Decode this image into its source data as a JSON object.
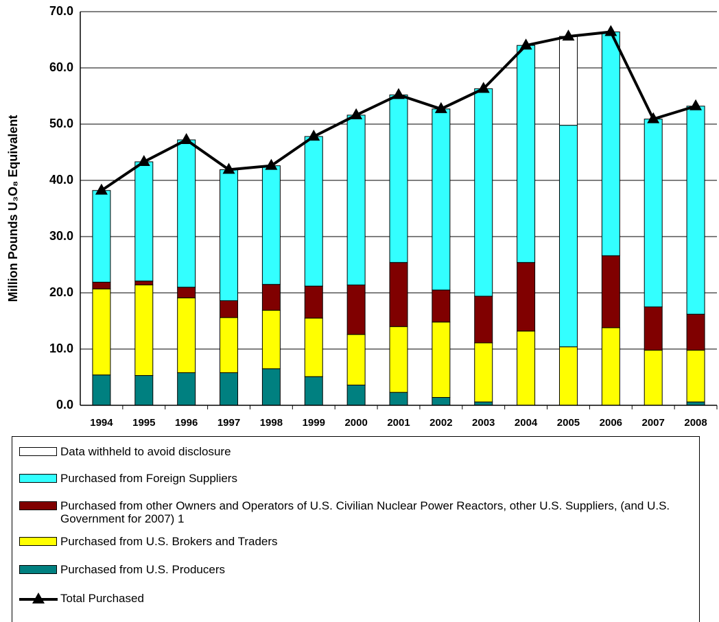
{
  "chart_data": {
    "type": "bar",
    "stacked": true,
    "y_label": "Million Pounds U₃O₈ Equivalent",
    "categories": [
      "1994",
      "1995",
      "1996",
      "1997",
      "1998",
      "1999",
      "2000",
      "2001",
      "2002",
      "2003",
      "2004",
      "2005",
      "2006",
      "2007",
      "2008"
    ],
    "series": [
      {
        "name": "Data withheld to avoid disclosure",
        "color": "#ffffff",
        "values": [
          null,
          null,
          null,
          null,
          null,
          null,
          null,
          null,
          null,
          null,
          null,
          15.8,
          null,
          null,
          null
        ]
      },
      {
        "name": "Purchased from Foreign Suppliers",
        "color": "#33ffff",
        "values": [
          16.3,
          21.2,
          26.2,
          23.3,
          21.1,
          26.6,
          30.2,
          29.8,
          32.2,
          36.9,
          38.6,
          39.4,
          39.8,
          33.4,
          37.0
        ]
      },
      {
        "name": "Purchased from other Owners and Operators of U.S. Civilian Nuclear Power Reactors, other U.S. Suppliers, (and U.S. Government for 2007) 1",
        "color": "#800000",
        "values": [
          1.2,
          0.7,
          1.9,
          3.0,
          4.6,
          5.7,
          8.8,
          11.4,
          5.7,
          8.3,
          12.2,
          null,
          12.8,
          7.7,
          6.4
        ]
      },
      {
        "name": "Purchased from U.S. Brokers and Traders",
        "color": "#ffff00",
        "values": [
          15.3,
          16.1,
          13.3,
          9.8,
          10.4,
          10.4,
          9.0,
          11.7,
          13.4,
          10.5,
          13.2,
          10.4,
          13.8,
          9.8,
          9.2
        ]
      },
      {
        "name": "Purchased from U.S. Producers",
        "color": "#008080",
        "values": [
          5.4,
          5.3,
          5.8,
          5.8,
          6.5,
          5.1,
          3.6,
          2.3,
          1.4,
          0.6,
          null,
          null,
          null,
          null,
          0.6
        ]
      },
      {
        "name": "Total Purchased",
        "type": "line",
        "color": "#000000",
        "values": [
          38.2,
          43.3,
          47.2,
          41.9,
          42.6,
          47.8,
          51.6,
          55.2,
          52.7,
          56.3,
          64.0,
          65.6,
          66.4,
          50.9,
          53.2
        ]
      }
    ],
    "ylim": [
      0,
      70
    ],
    "yticks": [
      {
        "value": 0,
        "label": "0.0"
      },
      {
        "value": 10,
        "label": "10.0"
      },
      {
        "value": 20,
        "label": "20.0"
      },
      {
        "value": 30,
        "label": "30.0"
      },
      {
        "value": 40,
        "label": "40.0"
      },
      {
        "value": 50,
        "label": "50.0"
      },
      {
        "value": 60,
        "label": "60.0"
      },
      {
        "value": 70,
        "label": "70.0"
      }
    ],
    "grid": true
  }
}
